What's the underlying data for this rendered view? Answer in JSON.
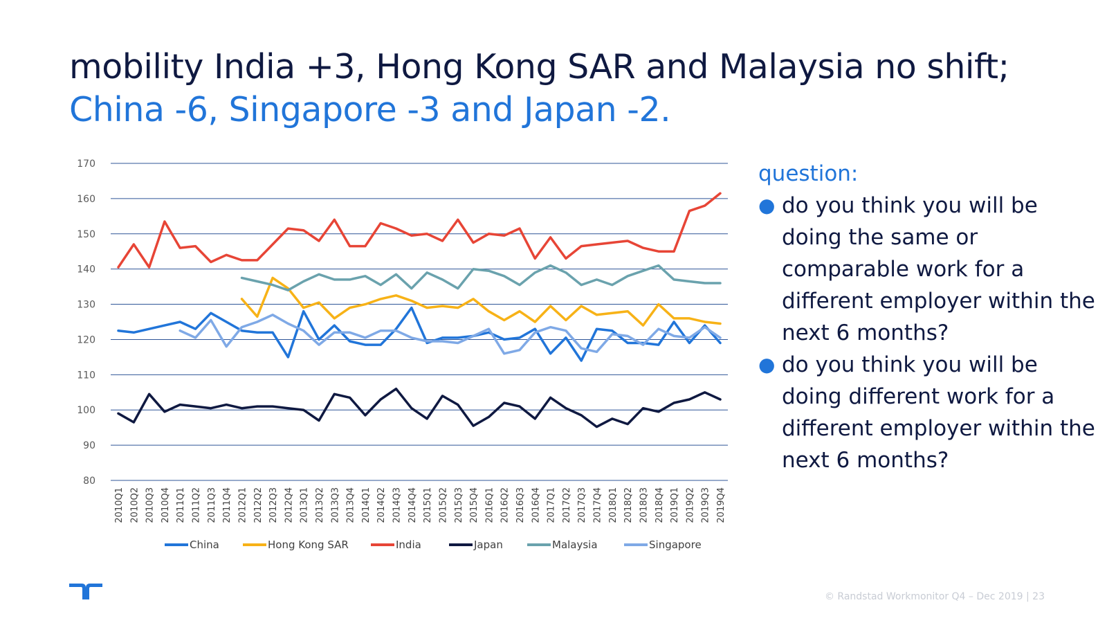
{
  "title": {
    "part1": "mobility India +3, Hong Kong SAR and Malaysia no shift;",
    "part2": "China -6, Singapore -3 and Japan -2."
  },
  "question": {
    "heading": "question:",
    "bullets": [
      "do you think you will be doing the same or comparable work for a different employer within the next 6 months?",
      "do you think you will be doing different work for a different employer within the next 6 months?"
    ]
  },
  "footer": {
    "text": "© Randstad Workmonitor Q4 – Dec 2019",
    "separator": "|",
    "page": "23"
  },
  "logo": {
    "icon": "randstad-logo-icon"
  },
  "colors": {
    "title_dark": "#0f1941",
    "accent": "#2175d9",
    "gridline": "#2f5597"
  },
  "chart_data": {
    "type": "line",
    "title": "",
    "xlabel": "",
    "ylabel": "",
    "ylim": [
      80,
      170
    ],
    "yticks": [
      "80",
      "90",
      "100",
      "110",
      "120",
      "130",
      "140",
      "150",
      "160",
      "170"
    ],
    "grid": true,
    "legend_position": "bottom",
    "categories": [
      "2010Q1",
      "2010Q2",
      "2010Q3",
      "2010Q4",
      "2011Q1",
      "2011Q2",
      "2011Q3",
      "2011Q4",
      "2012Q1",
      "2012Q2",
      "2012Q3",
      "2012Q4",
      "2013Q1",
      "2013Q2",
      "2013Q3",
      "2013Q4",
      "2014Q1",
      "2014Q2",
      "2014Q3",
      "2014Q4",
      "2015Q1",
      "2015Q2",
      "2015Q3",
      "2015Q4",
      "2016Q1",
      "2016Q2",
      "2016Q3",
      "2016Q4",
      "2017Q1",
      "2017Q2",
      "2017Q3",
      "2017Q4",
      "2018Q1",
      "2018Q2",
      "2018Q3",
      "2018Q4",
      "2019Q1",
      "2019Q2",
      "2019Q3",
      "2019Q4"
    ],
    "series": [
      {
        "name": "China",
        "color": "#2175d9",
        "values": [
          122.5,
          122,
          123,
          124,
          125,
          123,
          127.5,
          125,
          122.5,
          122,
          122,
          115,
          128,
          120,
          124,
          119.5,
          118.5,
          118.5,
          123,
          129,
          119,
          120.5,
          120.5,
          121,
          122,
          120,
          120.5,
          123,
          116,
          120.5,
          114,
          123,
          122.5,
          119,
          119,
          118.5,
          125,
          119,
          124,
          119
        ]
      },
      {
        "name": "Hong Kong SAR",
        "color": "#f7b217",
        "values": [
          null,
          null,
          null,
          null,
          null,
          null,
          null,
          null,
          131.5,
          126.5,
          137.5,
          134.5,
          129,
          130.5,
          126,
          129,
          130,
          131.5,
          132.5,
          131,
          129,
          129.5,
          129,
          131.5,
          128,
          125.5,
          128,
          125,
          129.5,
          125.5,
          129.5,
          127,
          127.5,
          128,
          124,
          130,
          126,
          126,
          125,
          124.5
        ]
      },
      {
        "name": "India",
        "color": "#e74536",
        "values": [
          140.5,
          147,
          140.5,
          153.5,
          146,
          146.5,
          142,
          144,
          142.5,
          142.5,
          147,
          151.5,
          151,
          148,
          154,
          146.5,
          146.5,
          153,
          151.5,
          149.5,
          150,
          148,
          154,
          147.5,
          150,
          149.5,
          151.5,
          143,
          149,
          143,
          146.5,
          147,
          147.5,
          148,
          146,
          145,
          145,
          156.5,
          158,
          161.5
        ]
      },
      {
        "name": "Japan",
        "color": "#0f1941",
        "values": [
          99,
          96.5,
          104.5,
          99.5,
          101.5,
          101,
          100.5,
          101.5,
          100.5,
          101,
          101,
          100.5,
          100,
          97,
          104.5,
          103.5,
          98.5,
          103,
          106,
          100.5,
          97.5,
          104,
          101.5,
          95.5,
          98,
          102,
          101,
          97.5,
          103.5,
          100.5,
          98.5,
          95.2,
          97.5,
          96,
          100.5,
          99.5,
          102,
          103,
          105,
          103
        ]
      },
      {
        "name": "Malaysia",
        "color": "#6aa2ad",
        "values": [
          null,
          null,
          null,
          null,
          null,
          null,
          null,
          null,
          137.5,
          136.5,
          135.5,
          134,
          136.5,
          138.5,
          137,
          137,
          138,
          135.5,
          138.5,
          134.5,
          139,
          137,
          134.5,
          140,
          139.5,
          138,
          135.5,
          139,
          141,
          139,
          135.5,
          137,
          135.5,
          138,
          139.5,
          141,
          137,
          136.5,
          136,
          136
        ]
      },
      {
        "name": "Singapore",
        "color": "#7fa9e6",
        "values": [
          null,
          null,
          null,
          null,
          122.5,
          120.5,
          125.5,
          118,
          123.5,
          125,
          127,
          124.5,
          122.5,
          118.5,
          122,
          122,
          120.5,
          122.5,
          122.5,
          120.5,
          119.5,
          119.5,
          119,
          121,
          123,
          116,
          117,
          122,
          123.5,
          122.5,
          117.5,
          116.5,
          121.5,
          121,
          118.5,
          123,
          121,
          120.5,
          123.5,
          120.5
        ]
      }
    ]
  }
}
